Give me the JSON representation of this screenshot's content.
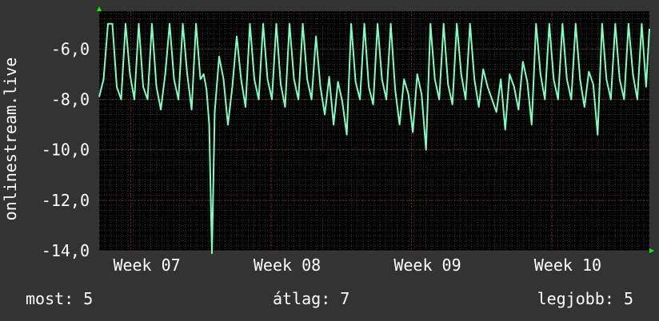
{
  "chart_data": {
    "type": "line",
    "ylabel": "onlinestream.live",
    "ylim": [
      -14.0,
      -4.5
    ],
    "yticks": [
      "-6,0",
      "-8,0",
      "-10,0",
      "-12,0",
      "-14,0"
    ],
    "ytick_values": [
      -6,
      -8,
      -10,
      -12,
      -14
    ],
    "xticks": [
      "Week 07",
      "Week 08",
      "Week 09",
      "Week 10"
    ],
    "xtick_values": [
      0.075,
      0.33,
      0.585,
      0.84
    ],
    "grid": true,
    "x_range": [
      0,
      1
    ],
    "series": [
      {
        "color": "#7fffbf",
        "x": [
          0.0,
          0.008,
          0.016,
          0.024,
          0.032,
          0.04,
          0.048,
          0.056,
          0.064,
          0.072,
          0.08,
          0.088,
          0.096,
          0.104,
          0.112,
          0.12,
          0.128,
          0.136,
          0.144,
          0.152,
          0.16,
          0.168,
          0.176,
          0.184,
          0.19,
          0.195,
          0.2,
          0.205,
          0.21,
          0.218,
          0.226,
          0.234,
          0.242,
          0.25,
          0.258,
          0.266,
          0.274,
          0.282,
          0.29,
          0.298,
          0.306,
          0.314,
          0.322,
          0.33,
          0.338,
          0.346,
          0.354,
          0.362,
          0.37,
          0.378,
          0.386,
          0.394,
          0.402,
          0.41,
          0.418,
          0.426,
          0.434,
          0.442,
          0.45,
          0.458,
          0.466,
          0.474,
          0.482,
          0.49,
          0.498,
          0.506,
          0.514,
          0.522,
          0.53,
          0.538,
          0.546,
          0.554,
          0.562,
          0.57,
          0.578,
          0.586,
          0.594,
          0.602,
          0.61,
          0.618,
          0.626,
          0.634,
          0.642,
          0.65,
          0.658,
          0.666,
          0.674,
          0.682,
          0.69,
          0.698,
          0.706,
          0.714,
          0.722,
          0.73,
          0.738,
          0.746,
          0.754,
          0.762,
          0.77,
          0.778,
          0.786,
          0.794,
          0.802,
          0.81,
          0.818,
          0.826,
          0.834,
          0.842,
          0.85,
          0.858,
          0.866,
          0.874,
          0.882,
          0.89,
          0.898,
          0.906,
          0.914,
          0.922,
          0.93,
          0.938,
          0.946,
          0.954,
          0.962,
          0.97,
          0.978,
          0.986,
          0.994,
          1.0
        ],
        "values": [
          -7.9,
          -7.2,
          -5.0,
          -5.0,
          -7.5,
          -8.0,
          -5.0,
          -7.0,
          -8.0,
          -5.0,
          -7.5,
          -8.0,
          -5.0,
          -7.5,
          -8.4,
          -7.0,
          -5.0,
          -7.2,
          -8.0,
          -5.0,
          -7.0,
          -8.4,
          -5.0,
          -7.2,
          -7.0,
          -7.6,
          -9.0,
          -14.1,
          -8.5,
          -6.3,
          -7.2,
          -9.0,
          -7.5,
          -5.5,
          -7.2,
          -8.3,
          -5.0,
          -7.2,
          -8.0,
          -5.0,
          -7.2,
          -8.0,
          -5.0,
          -7.4,
          -8.3,
          -5.0,
          -7.2,
          -8.0,
          -5.0,
          -7.2,
          -8.0,
          -5.5,
          -7.5,
          -8.6,
          -7.1,
          -9.0,
          -7.3,
          -8.1,
          -9.4,
          -5.0,
          -7.3,
          -8.0,
          -5.0,
          -7.5,
          -8.2,
          -5.0,
          -7.2,
          -8.0,
          -5.0,
          -7.6,
          -9.0,
          -7.2,
          -7.8,
          -9.3,
          -7.0,
          -7.8,
          -10.0,
          -5.0,
          -7.2,
          -8.0,
          -5.0,
          -7.4,
          -8.2,
          -5.0,
          -7.0,
          -8.0,
          -5.0,
          -7.2,
          -8.3,
          -6.8,
          -7.5,
          -8.0,
          -8.5,
          -7.2,
          -9.2,
          -7.0,
          -7.5,
          -8.4,
          -6.5,
          -7.3,
          -9.0,
          -5.0,
          -7.0,
          -8.0,
          -5.0,
          -7.2,
          -8.0,
          -5.0,
          -7.2,
          -8.0,
          -5.0,
          -7.2,
          -8.3,
          -6.9,
          -7.4,
          -9.4,
          -5.0,
          -7.2,
          -8.0,
          -5.0,
          -7.2,
          -8.0,
          -5.0,
          -7.0,
          -8.0,
          -5.0,
          -7.5,
          -5.2
        ]
      }
    ]
  },
  "footer": {
    "now": "most: 5",
    "avg": "átlag: 7",
    "best": "legjobb: 5"
  },
  "colors": {
    "background": "#333333",
    "plot_background": "#000000",
    "line": "#7fffbf",
    "grid_major": "#603030",
    "grid_minor": "#3a3a3a",
    "arrow": "#00ff00"
  }
}
